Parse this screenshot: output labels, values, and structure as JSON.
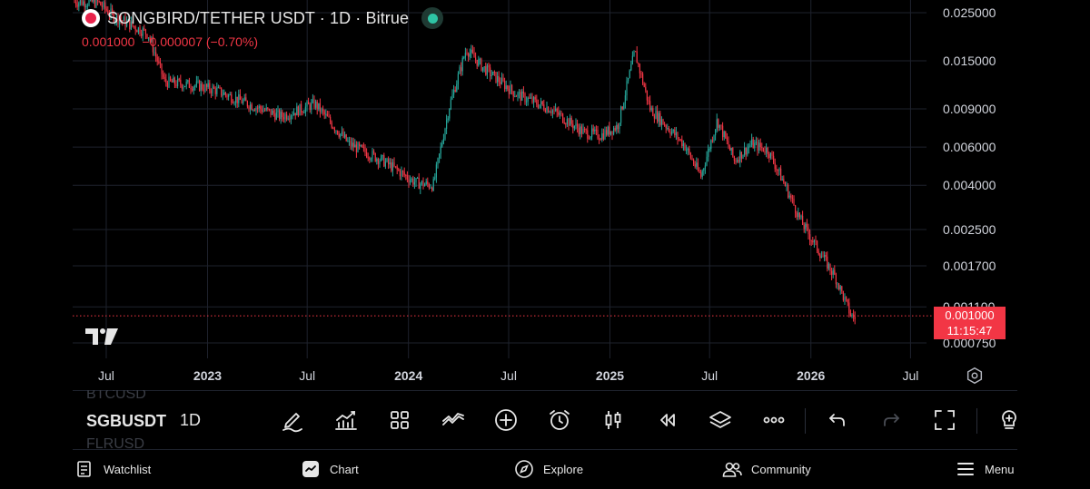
{
  "header": {
    "symbol_title": "SONGBIRD/TETHER USDT · 1D · Bitrue",
    "last_price": "0.001000",
    "change": "−0.000007 (−0.70%)"
  },
  "price_axis": {
    "labels": [
      "0.025000",
      "0.015000",
      "0.009000",
      "0.006000",
      "0.004000",
      "0.002500",
      "0.001700",
      "0.001100",
      "0.000750"
    ]
  },
  "price_tag": {
    "price": "0.001000",
    "countdown": "11:15:47"
  },
  "time_axis": {
    "labels": [
      "Jul",
      "2023",
      "Jul",
      "2024",
      "Jul",
      "2025",
      "Jul",
      "2026",
      "Jul"
    ]
  },
  "symbol_list": {
    "prev": "BTCUSD",
    "current": "SGBUSDT",
    "next": "FLRUSD"
  },
  "interval": "1D",
  "toolbar": [
    {
      "name": "draw-tool-icon"
    },
    {
      "name": "indicators-icon"
    },
    {
      "name": "layouts-icon"
    },
    {
      "name": "compare-icon"
    },
    {
      "name": "add-icon"
    },
    {
      "name": "alert-icon"
    },
    {
      "name": "candles-icon"
    },
    {
      "name": "replay-icon"
    },
    {
      "name": "layers-icon"
    },
    {
      "name": "more-icon"
    },
    {
      "name": "undo-icon"
    },
    {
      "name": "redo-icon"
    },
    {
      "name": "fullscreen-icon"
    },
    {
      "name": "ideas-icon"
    }
  ],
  "bottom_nav": {
    "watchlist": "Watchlist",
    "chart": "Chart",
    "explore": "Explore",
    "community": "Community",
    "menu": "Menu"
  },
  "colors": {
    "up": "#26a69a",
    "down": "#f23645",
    "background": "#000000",
    "grid": "#1e222d"
  },
  "chart_data": {
    "type": "candlestick",
    "x": [
      "2022-06",
      "2022-07",
      "2022-09",
      "2022-10",
      "2022-12",
      "2023-01",
      "2023-03",
      "2023-05",
      "2023-07",
      "2023-09",
      "2023-11",
      "2024-01",
      "2024-02",
      "2024-03",
      "2024-04",
      "2024-05",
      "2024-07",
      "2024-09",
      "2024-11",
      "2024-12",
      "2025-01",
      "2025-02",
      "2025-03",
      "2025-05",
      "2025-06",
      "2025-07",
      "2025-08",
      "2025-09",
      "2025-10",
      "2025-11",
      "2025-12",
      "2026-01",
      "2026-02",
      "2026-03"
    ],
    "close": [
      0.028,
      0.024,
      0.02,
      0.012,
      0.0115,
      0.011,
      0.0095,
      0.0083,
      0.0095,
      0.0062,
      0.0052,
      0.0041,
      0.004,
      0.0092,
      0.017,
      0.014,
      0.0105,
      0.009,
      0.007,
      0.0068,
      0.0075,
      0.0165,
      0.009,
      0.0062,
      0.0044,
      0.008,
      0.0052,
      0.0062,
      0.0058,
      0.004,
      0.0027,
      0.002,
      0.0015,
      0.001
    ],
    "y_scale": "log",
    "y_ticks": [
      0.025,
      0.015,
      0.009,
      0.006,
      0.004,
      0.0025,
      0.0017,
      0.0011,
      0.00075
    ],
    "last": 0.001
  }
}
